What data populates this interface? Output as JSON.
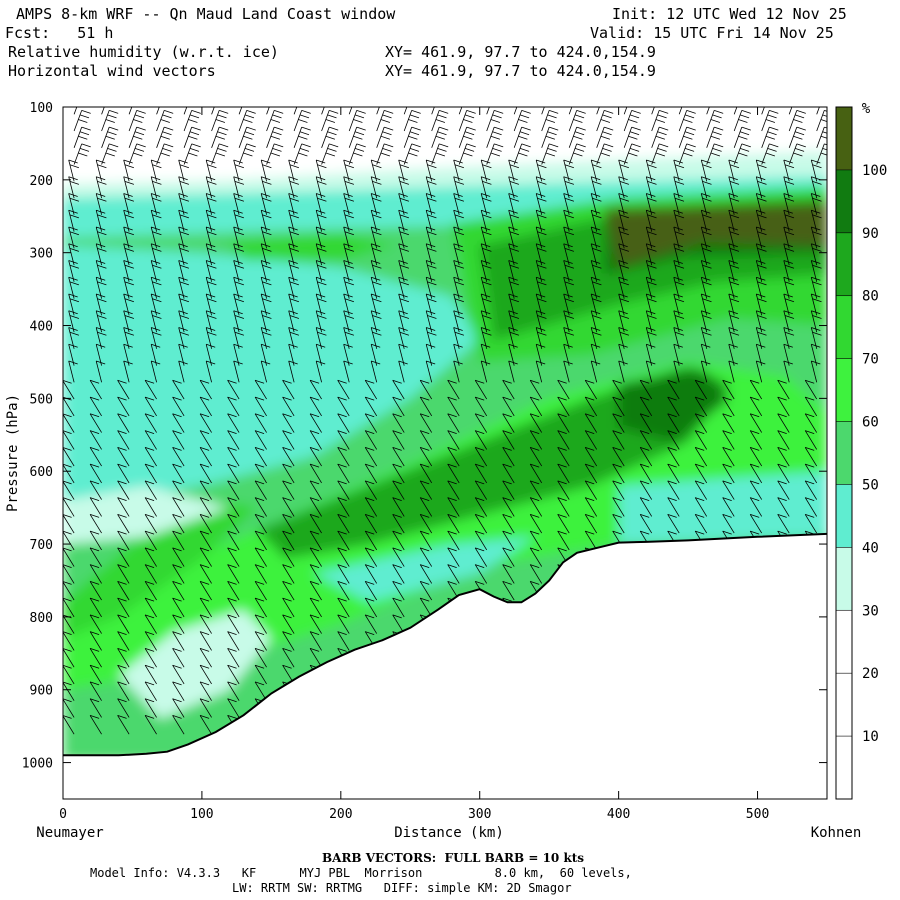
{
  "header": {
    "title": "AMPS 8-km WRF -- Qn Maud Land Coast window",
    "init": "Init: 12 UTC Wed 12 Nov 25",
    "fcst": "Fcst:   51 h",
    "valid": "Valid: 15 UTC Fri 14 Nov 25",
    "field1": "Relative humidity (w.r.t. ice)",
    "field2": "Horizontal wind vectors",
    "xy1": "XY= 461.9, 97.7 to 424.0,154.9",
    "xy2": "XY= 461.9, 97.7 to 424.0,154.9"
  },
  "footer": {
    "barb": "BARB VECTORS:  FULL BARB = 10 kts",
    "model": "Model Info: V4.3.3   KF      MYJ PBL  Morrison          8.0 km,  60 levels,",
    "physics": "LW: RRTM SW: RRTMG   DIFF: simple KM: 2D Smagor"
  },
  "colors": {
    "rh_0_30": "#ffffff",
    "rh_30_40": "#c8fbe8",
    "rh_40_50": "#5fedd0",
    "rh_50_60": "#4cd86d",
    "rh_60_70": "#3ef23e",
    "rh_70_80": "#31d831",
    "rh_80_90": "#1ea81e",
    "rh_90_100": "#117b11",
    "rh_100": "#476112",
    "terrain": "#ffffff",
    "barbs": "#000000"
  },
  "chart_data": {
    "type": "heatmap",
    "title": "Relative humidity (w.r.t. ice)",
    "xlabel": "Distance (km)",
    "ylabel": "Pressure (hPa)",
    "x_start_label": "Neumayer",
    "x_end_label": "Kohnen",
    "xlim": [
      0,
      550
    ],
    "ylim": [
      1050,
      100
    ],
    "xticks": [
      0,
      100,
      200,
      300,
      400,
      500
    ],
    "yticks": [
      100,
      200,
      300,
      400,
      500,
      600,
      700,
      800,
      900,
      1000
    ],
    "colorbar": {
      "unit": "%",
      "levels": [
        10,
        20,
        30,
        40,
        50,
        60,
        70,
        80,
        90,
        100
      ]
    },
    "terrain_surface_hPa": {
      "x": [
        0,
        20,
        40,
        60,
        75,
        90,
        110,
        130,
        150,
        170,
        190,
        210,
        230,
        250,
        270,
        285,
        300,
        310,
        320,
        330,
        340,
        350,
        360,
        370,
        385,
        400,
        420,
        450,
        500,
        550
      ],
      "p": [
        990,
        990,
        990,
        988,
        985,
        975,
        958,
        935,
        905,
        882,
        862,
        845,
        832,
        815,
        790,
        770,
        762,
        772,
        780,
        780,
        768,
        750,
        725,
        712,
        705,
        698,
        697,
        695,
        690,
        686
      ]
    },
    "rh_regions": [
      {
        "level": "40-50",
        "desc": "upper cloud deck",
        "x": [
          0,
          550
        ],
        "p": [
          290,
          200
        ]
      },
      {
        "level": "80-90",
        "desc": "upper moist layer",
        "x": [
          280,
          550
        ],
        "p": [
          450,
          230
        ]
      },
      {
        "level": ">100",
        "desc": "saturated upper layer",
        "x": [
          380,
          550
        ],
        "p": [
          300,
          240
        ]
      },
      {
        "level": "80-90",
        "desc": "mid-level moist band",
        "x": [
          160,
          470
        ],
        "p": [
          700,
          460
        ]
      },
      {
        "level": "30-40",
        "desc": "drier low levels",
        "x": [
          40,
          150
        ],
        "p": [
          940,
          800
        ]
      }
    ],
    "wind_barbs": "FULL BARB = 10 kts"
  }
}
